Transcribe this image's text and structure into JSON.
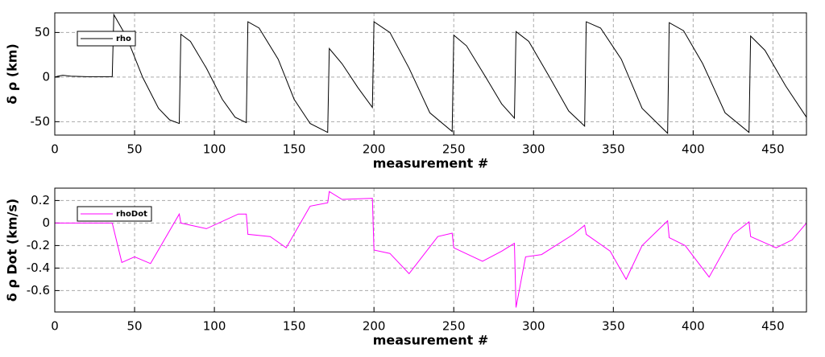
{
  "chart_data": [
    {
      "type": "line",
      "xlabel": "measurement #",
      "ylabel": "δ ρ (km)",
      "x": [
        0,
        2,
        5,
        10,
        20,
        36,
        37,
        45,
        55,
        65,
        72,
        78,
        79,
        85,
        95,
        105,
        113,
        120,
        121,
        128,
        140,
        150,
        160,
        171,
        172,
        180,
        190,
        199,
        200,
        210,
        222,
        235,
        249,
        250,
        258,
        270,
        280,
        288,
        289,
        297,
        310,
        322,
        332,
        333,
        342,
        355,
        368,
        384,
        385,
        394,
        406,
        420,
        435,
        436,
        445,
        458,
        471
      ],
      "series": [
        {
          "name": "rho",
          "color": "#000000",
          "values": [
            0,
            1,
            2,
            1,
            0.5,
            0.5,
            70,
            45,
            0,
            -35,
            -48,
            -52,
            48,
            40,
            10,
            -25,
            -45,
            -51,
            62,
            55,
            20,
            -25,
            -52,
            -62,
            32,
            15,
            -12,
            -34,
            62,
            50,
            10,
            -40,
            -61,
            47,
            35,
            0,
            -30,
            -46,
            51,
            40,
            0,
            -38,
            -55,
            62,
            55,
            20,
            -35,
            -63,
            61,
            52,
            15,
            -40,
            -62,
            46,
            30,
            -10,
            -45
          ]
        }
      ],
      "xlim": [
        0,
        471
      ],
      "xticks": [
        0,
        50,
        100,
        150,
        200,
        250,
        300,
        350,
        400,
        450
      ],
      "ylim": [
        -65,
        72
      ],
      "yticks": [
        -50,
        0,
        50
      ],
      "grid": true,
      "legend": "upper left"
    },
    {
      "type": "line",
      "xlabel": "measurement #",
      "ylabel": "δ ρ Dot (km/s)",
      "x": [
        0,
        36,
        42,
        50,
        60,
        78,
        79,
        95,
        115,
        120,
        121,
        135,
        145,
        160,
        171,
        172,
        180,
        199,
        200,
        210,
        222,
        240,
        249,
        250,
        268,
        280,
        288,
        289,
        295,
        305,
        325,
        332,
        333,
        348,
        358,
        368,
        384,
        385,
        395,
        410,
        425,
        435,
        436,
        452,
        462,
        471
      ],
      "series": [
        {
          "name": "rhoDot",
          "color": "#ff00ff",
          "values": [
            0,
            0,
            -0.35,
            -0.3,
            -0.36,
            0.08,
            0,
            -0.05,
            0.08,
            0.08,
            -0.1,
            -0.12,
            -0.22,
            0.15,
            0.18,
            0.28,
            0.21,
            0.22,
            -0.24,
            -0.27,
            -0.45,
            -0.12,
            -0.09,
            -0.22,
            -0.34,
            -0.25,
            -0.18,
            -0.75,
            -0.3,
            -0.28,
            -0.1,
            -0.02,
            -0.1,
            -0.25,
            -0.5,
            -0.2,
            0.02,
            -0.13,
            -0.2,
            -0.48,
            -0.1,
            0.01,
            -0.12,
            -0.22,
            -0.15,
            0
          ]
        }
      ],
      "xlim": [
        0,
        471
      ],
      "xticks": [
        0,
        50,
        100,
        150,
        200,
        250,
        300,
        350,
        400,
        450
      ],
      "ylim": [
        -0.79,
        0.31
      ],
      "yticks": [
        -0.6,
        -0.4,
        -0.2,
        0,
        0.2
      ],
      "grid": true,
      "legend": "upper left"
    }
  ]
}
